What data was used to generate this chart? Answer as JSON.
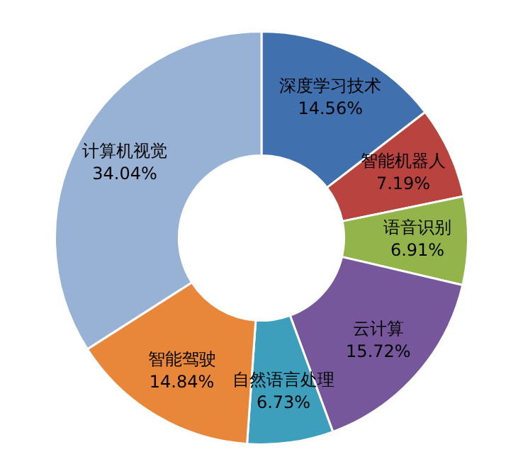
{
  "chart_data": {
    "type": "donut",
    "categories": [
      "深度学习技术",
      "智能机器人",
      "语音识别",
      "云计算",
      "自然语言处理",
      "智能驾驶",
      "计算机视觉"
    ],
    "values": [
      14.56,
      7.19,
      6.91,
      15.72,
      6.73,
      14.84,
      34.04
    ],
    "value_labels": [
      "14.56%",
      "7.19%",
      "6.91%",
      "15.72%",
      "6.73%",
      "14.84%",
      "34.04%"
    ],
    "colors": [
      "#4070ae",
      "#b9433f",
      "#93b34b",
      "#76579c",
      "#3d9fbb",
      "#e8873a",
      "#98b2d6"
    ],
    "legend": false
  }
}
